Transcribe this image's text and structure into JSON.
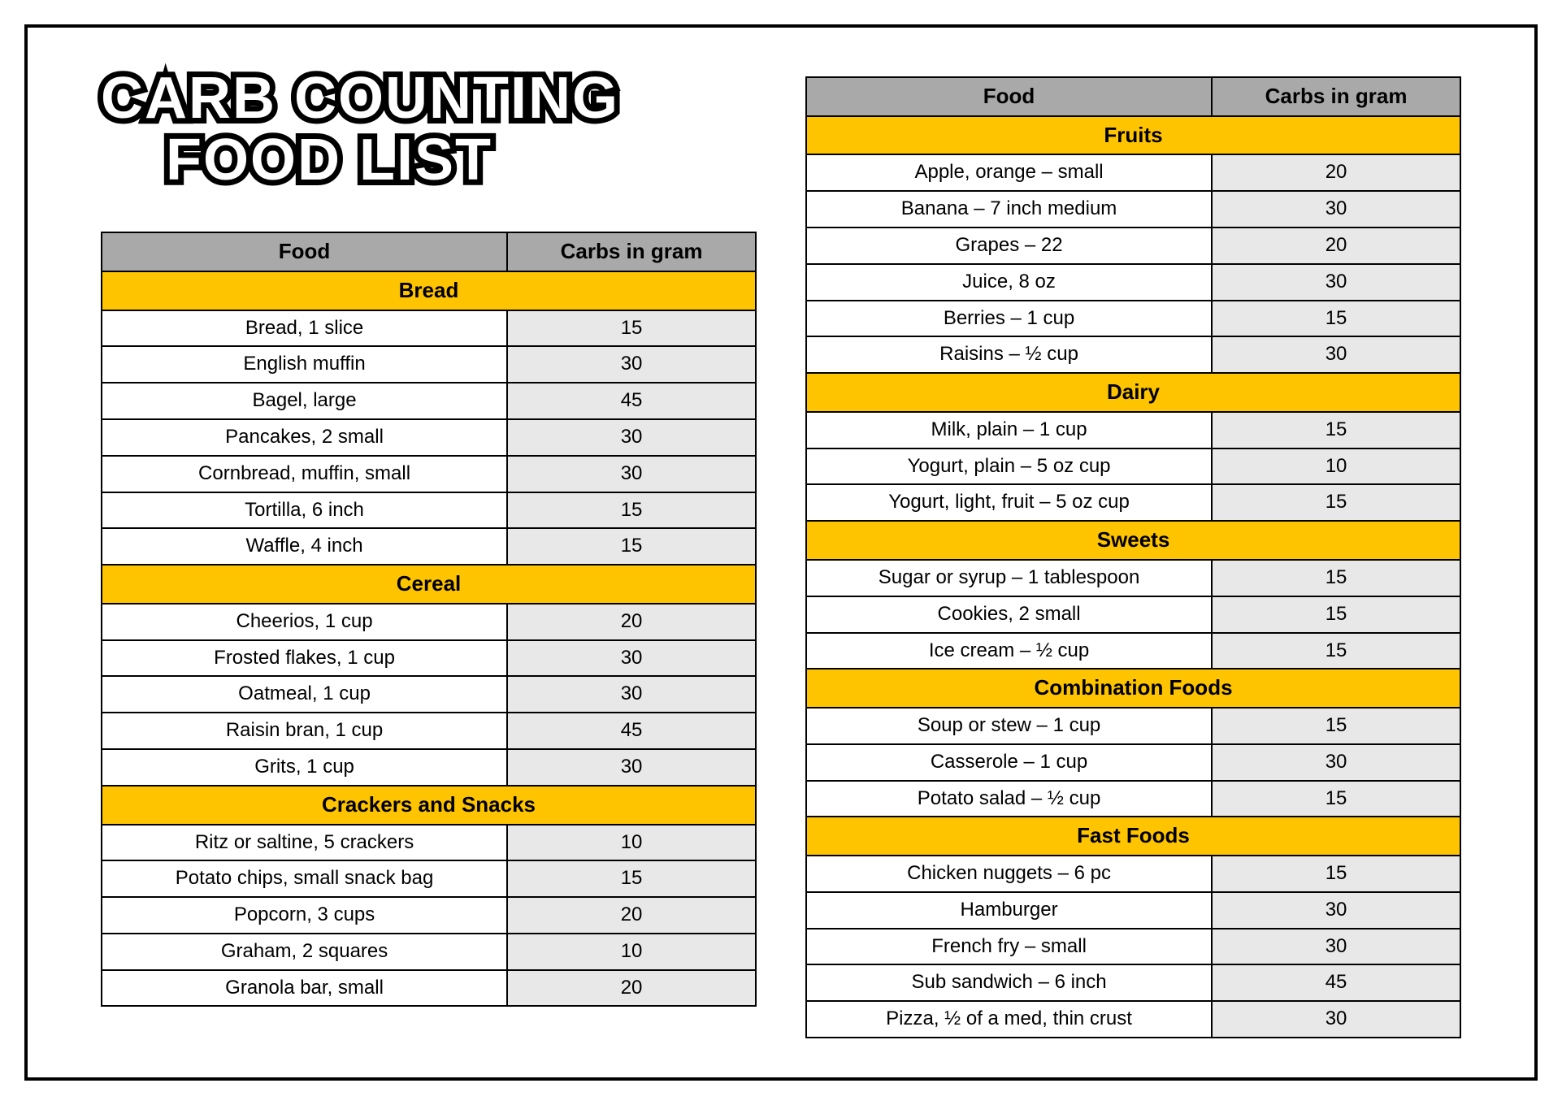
{
  "title_line1": "CARB COUNTING",
  "title_line2": "FOOD LIST",
  "colors": {
    "border": "#000000",
    "header_bg": "#a9a9a9",
    "category_bg": "#ffc400",
    "carb_cell_bg": "#e8e8e8",
    "page_bg": "#ffffff",
    "title_fill": "#ffffff",
    "title_stroke": "#000000"
  },
  "typography": {
    "body_font": "Comic Sans MS",
    "title_fontsize_pt": 54,
    "body_fontsize_pt": 18,
    "header_fontsize_pt": 20
  },
  "columns": [
    "Food",
    "Carbs in gram"
  ],
  "left_sections": [
    {
      "name": "Bread",
      "items": [
        {
          "food": "Bread, 1 slice",
          "carbs": 15
        },
        {
          "food": "English muffin",
          "carbs": 30
        },
        {
          "food": "Bagel, large",
          "carbs": 45
        },
        {
          "food": "Pancakes, 2 small",
          "carbs": 30
        },
        {
          "food": "Cornbread, muffin, small",
          "carbs": 30
        },
        {
          "food": "Tortilla, 6 inch",
          "carbs": 15
        },
        {
          "food": "Waffle, 4 inch",
          "carbs": 15
        }
      ]
    },
    {
      "name": "Cereal",
      "items": [
        {
          "food": "Cheerios, 1 cup",
          "carbs": 20
        },
        {
          "food": "Frosted flakes, 1 cup",
          "carbs": 30
        },
        {
          "food": "Oatmeal, 1 cup",
          "carbs": 30
        },
        {
          "food": "Raisin bran, 1 cup",
          "carbs": 45
        },
        {
          "food": "Grits, 1 cup",
          "carbs": 30
        }
      ]
    },
    {
      "name": "Crackers and Snacks",
      "items": [
        {
          "food": "Ritz or saltine, 5 crackers",
          "carbs": 10
        },
        {
          "food": "Potato chips, small snack bag",
          "carbs": 15
        },
        {
          "food": "Popcorn, 3 cups",
          "carbs": 20
        },
        {
          "food": "Graham, 2 squares",
          "carbs": 10
        },
        {
          "food": "Granola bar, small",
          "carbs": 20
        }
      ]
    }
  ],
  "right_sections": [
    {
      "name": "Fruits",
      "items": [
        {
          "food": "Apple, orange – small",
          "carbs": 20
        },
        {
          "food": "Banana – 7 inch medium",
          "carbs": 30
        },
        {
          "food": "Grapes – 22",
          "carbs": 20
        },
        {
          "food": "Juice, 8 oz",
          "carbs": 30
        },
        {
          "food": "Berries – 1 cup",
          "carbs": 15
        },
        {
          "food": "Raisins – ½ cup",
          "carbs": 30
        }
      ]
    },
    {
      "name": "Dairy",
      "items": [
        {
          "food": "Milk, plain – 1 cup",
          "carbs": 15
        },
        {
          "food": "Yogurt, plain – 5 oz cup",
          "carbs": 10
        },
        {
          "food": "Yogurt, light, fruit – 5 oz cup",
          "carbs": 15
        }
      ]
    },
    {
      "name": "Sweets",
      "items": [
        {
          "food": "Sugar or syrup – 1 tablespoon",
          "carbs": 15
        },
        {
          "food": "Cookies, 2 small",
          "carbs": 15
        },
        {
          "food": "Ice cream – ½ cup",
          "carbs": 15
        }
      ]
    },
    {
      "name": "Combination Foods",
      "items": [
        {
          "food": "Soup or stew – 1 cup",
          "carbs": 15
        },
        {
          "food": "Casserole – 1 cup",
          "carbs": 30
        },
        {
          "food": "Potato salad – ½ cup",
          "carbs": 15
        }
      ]
    },
    {
      "name": "Fast Foods",
      "items": [
        {
          "food": "Chicken nuggets – 6 pc",
          "carbs": 15
        },
        {
          "food": "Hamburger",
          "carbs": 30
        },
        {
          "food": "French fry – small",
          "carbs": 30
        },
        {
          "food": "Sub sandwich – 6 inch",
          "carbs": 45
        },
        {
          "food": "Pizza, ½ of a med, thin crust",
          "carbs": 30
        }
      ]
    }
  ]
}
